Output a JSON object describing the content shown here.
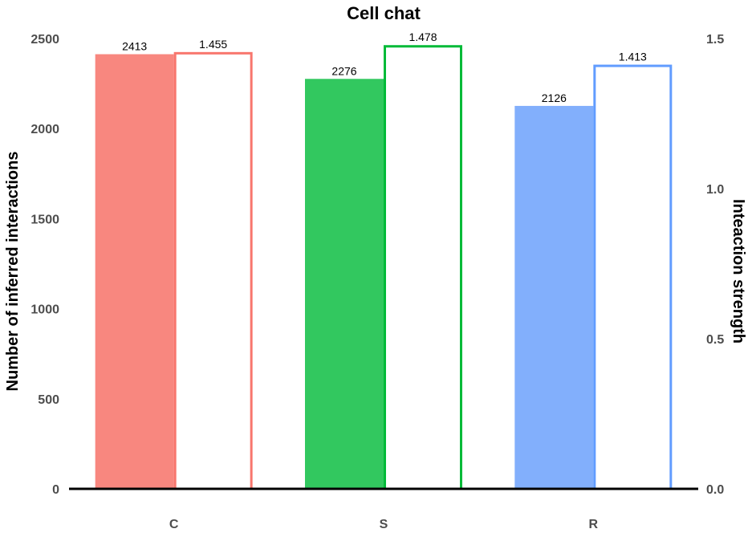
{
  "chart_data": {
    "type": "bar",
    "title": "Cell chat",
    "categories": [
      "C",
      "S",
      "R"
    ],
    "colors": [
      "#F8877F",
      "#32C85F",
      "#82AFFC"
    ],
    "border_colors": [
      "#F8766D",
      "#00BA38",
      "#619CFF"
    ],
    "series": [
      {
        "values": [
          2413,
          2276,
          2126
        ],
        "labels": [
          "2413",
          "2276",
          "2126"
        ],
        "axis": "left",
        "style": "filled"
      },
      {
        "values": [
          1.455,
          1.478,
          1.413
        ],
        "labels": [
          "1.455",
          "1.478",
          "1.413"
        ],
        "axis": "right",
        "style": "outline"
      }
    ],
    "ylabel": "Number of inferred interactions",
    "ylabel_right": "Inteaction strength",
    "ylim": [
      0,
      2500
    ],
    "ylim_right": [
      0,
      1.5
    ],
    "yticks": [
      "0",
      "500",
      "1000",
      "1500",
      "2000",
      "2500"
    ],
    "yticks_right": [
      "0.0",
      "0.5",
      "1.0",
      "1.5"
    ],
    "grid": false
  }
}
